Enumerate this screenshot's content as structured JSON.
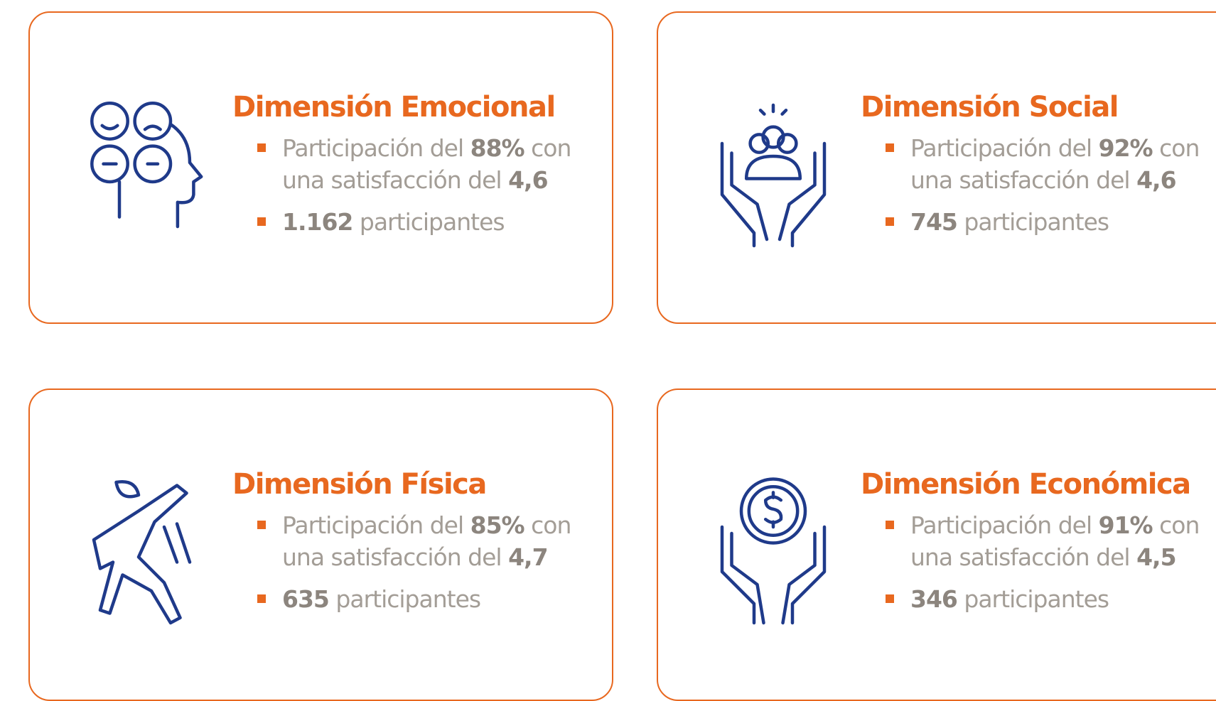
{
  "cards": [
    {
      "title": "Dimensión Emocional",
      "participation": {
        "prefix": "Participación del",
        "percent": "88%",
        "connector": "con",
        "satisfaction_text": "una satisfacción del",
        "score": "4,6"
      },
      "participants": {
        "count": "1.162",
        "label": "participantes"
      }
    },
    {
      "title": "Dimensión Social",
      "participation": {
        "prefix": "Participación del",
        "percent": "92%",
        "connector": "con",
        "satisfaction_text": "una satisfacción del",
        "score": "4,6"
      },
      "participants": {
        "count": "745",
        "label": "participantes"
      }
    },
    {
      "title": "Dimensión Física",
      "participation": {
        "prefix": "Participación del",
        "percent": "85%",
        "connector": "con",
        "satisfaction_text": "una satisfacción del",
        "score": "4,7"
      },
      "participants": {
        "count": "635",
        "label": "participantes"
      }
    },
    {
      "title": "Dimensión Económica",
      "participation": {
        "prefix": "Participación del",
        "percent": "91%",
        "connector": "con",
        "satisfaction_text": "una satisfacción del",
        "score": "4,5"
      },
      "participants": {
        "count": "346",
        "label": "participantes"
      }
    }
  ]
}
